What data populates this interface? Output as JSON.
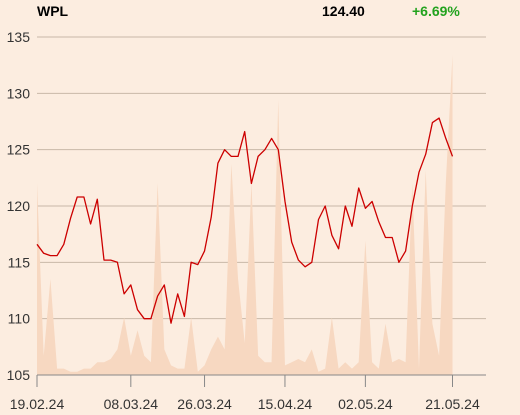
{
  "header": {
    "ticker": "WPL",
    "price": "124.40",
    "change": "+6.69%"
  },
  "colors": {
    "background": "#fcede0",
    "line": "#cc0000",
    "volume": "#f7d8c1",
    "grid": "#c9b8a8",
    "change_positive": "#22a21e"
  },
  "chart_data": {
    "type": "line",
    "title": "",
    "xlabel": "",
    "ylabel": "",
    "ylim": [
      105,
      135
    ],
    "yticks": [
      105,
      110,
      115,
      120,
      125,
      130,
      135
    ],
    "xlim": [
      0,
      67
    ],
    "xticks": [
      {
        "label": "19.02.24",
        "x": 0
      },
      {
        "label": "08.03.24",
        "x": 14
      },
      {
        "label": "26.03.24",
        "x": 25
      },
      {
        "label": "15.04.24",
        "x": 37
      },
      {
        "label": "02.05.24",
        "x": 49
      },
      {
        "label": "21.05.24",
        "x": 62
      }
    ],
    "grid": true,
    "series": [
      {
        "values": [
          116.6,
          115.8,
          115.6,
          115.6,
          116.6,
          118.9,
          120.8,
          120.8,
          118.4,
          120.6,
          115.2,
          115.2,
          115.0,
          112.2,
          113.0,
          110.8,
          110.0,
          110.0,
          112.0,
          113.0,
          109.6,
          112.2,
          110.2,
          115.0,
          114.8,
          116.0,
          119.0,
          123.8,
          125.0,
          124.4,
          124.4,
          126.6,
          122.0,
          124.4,
          125.0,
          126.0,
          125.0,
          120.4,
          116.8,
          115.2,
          114.6,
          115.0,
          118.8,
          120.0,
          117.4,
          116.2,
          120.0,
          118.2,
          121.6,
          119.8,
          120.4,
          118.6,
          117.2,
          117.2,
          115.0,
          116.0,
          120.0,
          123.0,
          124.6,
          127.4,
          127.8,
          126.0,
          124.4
        ]
      }
    ],
    "volume": [
      30,
      3,
      15,
      1,
      1,
      0.5,
      0.5,
      1,
      1,
      2,
      2,
      2.5,
      4,
      9,
      3,
      7,
      3,
      2,
      30,
      4,
      1.5,
      1,
      1,
      9,
      0.5,
      1.5,
      4,
      6,
      4,
      33,
      15,
      5,
      30,
      3,
      2,
      2,
      43,
      1.5,
      2,
      2.5,
      2,
      4,
      0.5,
      1,
      9,
      1,
      2,
      1,
      2,
      21,
      2,
      1,
      8,
      2,
      2.5,
      2,
      30,
      1,
      32,
      8,
      3,
      30,
      50
    ]
  }
}
